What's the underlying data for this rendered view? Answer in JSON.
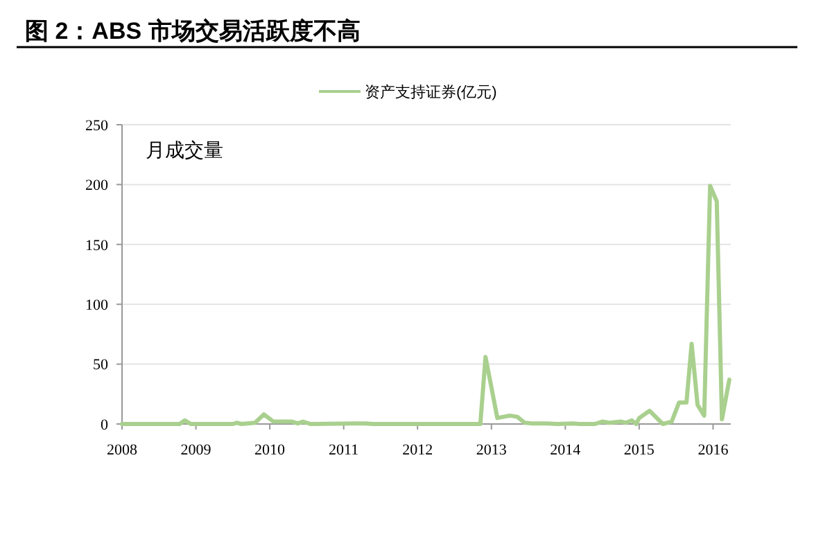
{
  "chart_data": {
    "type": "line",
    "title": "图 2：ABS 市场交易活跃度不高",
    "annotations": [
      "月成交量"
    ],
    "x": [
      2008.0,
      2008.78,
      2008.85,
      2008.93,
      2009.5,
      2009.55,
      2009.62,
      2009.8,
      2009.92,
      2010.05,
      2010.3,
      2010.38,
      2010.45,
      2010.55,
      2011.3,
      2011.4,
      2012.85,
      2012.92,
      2013.08,
      2013.25,
      2013.35,
      2013.45,
      2013.55,
      2013.75,
      2013.9,
      2014.1,
      2014.2,
      2014.4,
      2014.5,
      2014.6,
      2014.75,
      2014.82,
      2014.9,
      2014.96,
      2015.0,
      2015.14,
      2015.32,
      2015.44,
      2015.54,
      2015.64,
      2015.71,
      2015.79,
      2015.88,
      2015.96,
      2016.05,
      2016.12,
      2016.22
    ],
    "series": [
      {
        "name": "资产支持证券(亿元)",
        "color": "#a9d08e",
        "values": [
          0,
          0,
          3,
          0,
          0,
          1,
          0,
          1,
          8,
          2,
          2,
          0.5,
          2,
          0,
          0.5,
          0,
          0,
          56,
          5,
          7,
          6,
          1,
          0.5,
          0.5,
          0,
          0.5,
          0,
          0,
          2,
          1,
          2,
          1,
          3,
          0,
          5,
          11,
          0,
          2,
          18,
          18,
          67,
          16,
          7,
          199,
          186,
          4,
          37
        ]
      }
    ],
    "xlim": [
      2008,
      2016.24
    ],
    "xticks": [
      2008,
      2009,
      2010,
      2011,
      2012,
      2013,
      2014,
      2015,
      2016
    ],
    "ylim": [
      0,
      250
    ],
    "yticks": [
      0,
      50,
      100,
      150,
      200,
      250
    ],
    "grid": "y",
    "legend": "top",
    "line_style": "solid",
    "marker": "none"
  }
}
